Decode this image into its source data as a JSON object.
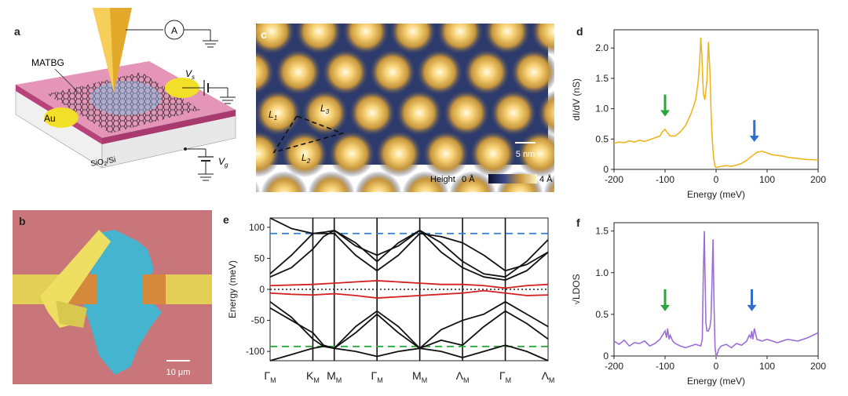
{
  "panels": {
    "a": {
      "label": "a",
      "sample_label": "MATBG",
      "ammeter_label": "A",
      "electrode_label": "Au",
      "substrate_label": "SiO",
      "substrate_sub": "2",
      "substrate_suffix": "/Si",
      "vs_label": "V",
      "vs_sub": "s",
      "vg_label": "V",
      "vg_sub": "g"
    },
    "b": {
      "label": "b",
      "scale_bar": "10 μm",
      "colors": {
        "bg": "#c8767a",
        "flake": "#44b4cf",
        "electrode": "#e3cf55"
      }
    },
    "c": {
      "label": "c",
      "l1": "L",
      "l1_sub": "1",
      "l2": "L",
      "l2_sub": "2",
      "l3": "L",
      "l3_sub": "3",
      "scale_bar": "5 nm",
      "colorbar_title": "Height",
      "colorbar_min": "0 Å",
      "colorbar_max": "4 Å"
    },
    "d": {
      "label": "d"
    },
    "e": {
      "label": "e"
    },
    "f": {
      "label": "f"
    }
  },
  "chart_data": [
    {
      "id": "d",
      "type": "line",
      "xlabel": "Energy (meV)",
      "ylabel": "dI/dV (nS)",
      "xlim": [
        -200,
        200
      ],
      "ylim": [
        0,
        2.3
      ],
      "xticks": [
        -200,
        -100,
        0,
        100,
        200
      ],
      "yticks": [
        0,
        0.5,
        1.0,
        1.5,
        2.0
      ],
      "color": "#f0b51e",
      "arrows": [
        {
          "x": -100,
          "y": 0.82,
          "color": "#2aa63a"
        },
        {
          "x": 75,
          "y": 0.4,
          "color": "#2f6fd0"
        }
      ],
      "series": [
        {
          "x": [
            -200,
            -190,
            -180,
            -170,
            -160,
            -150,
            -140,
            -130,
            -120,
            -110,
            -105,
            -100,
            -95,
            -90,
            -80,
            -70,
            -60,
            -50,
            -45,
            -40,
            -35,
            -32,
            -30,
            -28,
            -25,
            -22,
            -18,
            -15,
            -12,
            -10,
            -8,
            -5,
            -2,
            0,
            5,
            10,
            20,
            30,
            40,
            50,
            60,
            70,
            80,
            90,
            100,
            110,
            120,
            130,
            140,
            150,
            160,
            170,
            180,
            190,
            200
          ],
          "y": [
            0.43,
            0.45,
            0.44,
            0.47,
            0.45,
            0.48,
            0.46,
            0.49,
            0.52,
            0.55,
            0.62,
            0.66,
            0.6,
            0.55,
            0.55,
            0.62,
            0.72,
            0.9,
            1.02,
            1.15,
            1.45,
            1.8,
            2.17,
            1.9,
            1.25,
            1.15,
            1.45,
            2.1,
            1.6,
            1.0,
            0.55,
            0.2,
            0.05,
            0.03,
            0.04,
            0.05,
            0.06,
            0.05,
            0.07,
            0.1,
            0.15,
            0.22,
            0.28,
            0.3,
            0.27,
            0.24,
            0.23,
            0.22,
            0.2,
            0.19,
            0.18,
            0.17,
            0.16,
            0.16,
            0.15
          ]
        }
      ]
    },
    {
      "id": "f",
      "type": "line",
      "xlabel": "Energy (meV)",
      "ylabel": "√LDOS",
      "xlim": [
        -200,
        200
      ],
      "ylim": [
        0,
        1.6
      ],
      "xticks": [
        -200,
        -100,
        0,
        100,
        200
      ],
      "yticks": [
        0,
        0.5,
        1.0,
        1.5
      ],
      "color": "#9b6fd6",
      "arrows": [
        {
          "x": -100,
          "y": 0.5,
          "color": "#2aa63a"
        },
        {
          "x": 70,
          "y": 0.5,
          "color": "#2f6fd0"
        }
      ],
      "series": [
        {
          "x": [
            -200,
            -190,
            -180,
            -170,
            -160,
            -150,
            -140,
            -130,
            -120,
            -110,
            -105,
            -100,
            -97,
            -95,
            -92,
            -90,
            -85,
            -80,
            -70,
            -60,
            -50,
            -40,
            -30,
            -27,
            -25,
            -23,
            -22,
            -20,
            -18,
            -15,
            -12,
            -10,
            -8,
            -6,
            -4,
            -2,
            0,
            2,
            5,
            10,
            20,
            30,
            40,
            50,
            60,
            65,
            68,
            70,
            72,
            75,
            80,
            90,
            100,
            120,
            140,
            160,
            180,
            200
          ],
          "y": [
            0.18,
            0.14,
            0.19,
            0.12,
            0.16,
            0.15,
            0.18,
            0.12,
            0.15,
            0.2,
            0.25,
            0.3,
            0.22,
            0.33,
            0.2,
            0.25,
            0.18,
            0.15,
            0.12,
            0.1,
            0.12,
            0.14,
            0.12,
            0.2,
            1.0,
            1.5,
            1.1,
            0.4,
            0.3,
            0.3,
            0.35,
            0.45,
            0.9,
            1.4,
            0.6,
            0.1,
            0.0,
            0.02,
            0.08,
            0.12,
            0.14,
            0.1,
            0.15,
            0.13,
            0.18,
            0.25,
            0.22,
            0.3,
            0.2,
            0.33,
            0.2,
            0.18,
            0.2,
            0.16,
            0.2,
            0.18,
            0.22,
            0.28
          ]
        }
      ]
    },
    {
      "id": "e",
      "type": "line",
      "ylabel": "Energy (meV)",
      "ylim": [
        -115,
        115
      ],
      "yticks": [
        -100,
        -50,
        0,
        50,
        100
      ],
      "hlines": [
        {
          "y": 90,
          "color": "#2f7fd0",
          "style": "dashed"
        },
        {
          "y": -92,
          "color": "#2aa63a",
          "style": "dashed"
        },
        {
          "y": 0,
          "color": "#222222",
          "style": "dotted"
        }
      ],
      "kpoints": [
        {
          "name": "Γ",
          "sub": "M",
          "pos": 0
        },
        {
          "name": "K",
          "sub": "M",
          "pos": 1
        },
        {
          "name": "M",
          "sub": "M",
          "pos": 1.5
        },
        {
          "name": "Γ",
          "sub": "M",
          "pos": 2.5
        },
        {
          "name": "M",
          "sub": "M",
          "pos": 3.5
        },
        {
          "name": "Λ",
          "sub": "M",
          "pos": 4.5
        },
        {
          "name": "Γ",
          "sub": "M",
          "pos": 5.5
        },
        {
          "name": "Λ",
          "sub": "M",
          "pos": 6.5
        }
      ],
      "vlines_at": [
        1,
        1.5,
        2.5,
        3.5,
        4.5,
        5.5
      ],
      "series": [
        {
          "color": "#111111",
          "x": [
            0,
            0.5,
            1,
            1.25,
            1.5,
            2,
            2.5,
            3,
            3.5,
            4,
            4.5,
            5,
            5.5,
            6,
            6.5
          ],
          "y": [
            115,
            98,
            90,
            90,
            90,
            55,
            30,
            55,
            90,
            85,
            75,
            55,
            30,
            40,
            60
          ]
        },
        {
          "color": "#111111",
          "x": [
            0,
            0.5,
            1,
            1.25,
            1.5,
            2,
            2.5,
            3,
            3.5,
            4,
            4.5,
            5,
            5.5,
            6,
            6.5
          ],
          "y": [
            25,
            55,
            90,
            92,
            95,
            75,
            45,
            75,
            95,
            75,
            45,
            25,
            20,
            45,
            80
          ]
        },
        {
          "color": "#111111",
          "x": [
            0,
            0.5,
            1,
            1.25,
            1.5,
            2,
            2.5,
            3,
            3.5,
            4,
            4.5,
            5,
            5.5,
            6,
            6.5
          ],
          "y": [
            20,
            35,
            65,
            85,
            95,
            70,
            55,
            70,
            95,
            60,
            35,
            20,
            15,
            30,
            60
          ]
        },
        {
          "color": "#d42020",
          "x": [
            0,
            0.5,
            1,
            1.5,
            2,
            2.5,
            3,
            3.5,
            4,
            4.5,
            5,
            5.5,
            6,
            6.5
          ],
          "y": [
            6,
            7,
            8,
            10,
            12,
            14,
            12,
            10,
            8,
            8,
            6,
            2,
            6,
            8
          ]
        },
        {
          "color": "#d42020",
          "x": [
            0,
            0.5,
            1,
            1.5,
            2,
            2.5,
            3,
            3.5,
            4,
            4.5,
            5,
            5.5,
            6,
            6.5
          ],
          "y": [
            -6,
            -8,
            -9,
            -7,
            -10,
            -14,
            -12,
            -10,
            -8,
            -6,
            -2,
            -6,
            -10,
            -9
          ]
        },
        {
          "color": "#111111",
          "x": [
            0,
            0.5,
            1,
            1.25,
            1.5,
            2,
            2.5,
            3,
            3.5,
            4,
            4.5,
            5,
            5.5,
            6,
            6.5
          ],
          "y": [
            -30,
            -50,
            -70,
            -90,
            -95,
            -60,
            -35,
            -60,
            -95,
            -65,
            -50,
            -40,
            -20,
            -40,
            -60
          ]
        },
        {
          "color": "#111111",
          "x": [
            0,
            0.5,
            1,
            1.25,
            1.5,
            2,
            2.5,
            3,
            3.5,
            4,
            4.5,
            5,
            5.5,
            6,
            6.5
          ],
          "y": [
            -20,
            -45,
            -80,
            -92,
            -95,
            -70,
            -40,
            -70,
            -95,
            -82,
            -90,
            -60,
            -35,
            -55,
            -80
          ]
        },
        {
          "color": "#111111",
          "x": [
            0,
            0.5,
            1,
            1.25,
            1.5,
            2,
            2.5,
            3,
            3.5,
            4,
            4.5,
            5,
            5.5,
            6,
            6.5
          ],
          "y": [
            -115,
            -105,
            -95,
            -92,
            -95,
            -100,
            -108,
            -100,
            -95,
            -100,
            -110,
            -100,
            -90,
            -100,
            -115
          ]
        }
      ]
    }
  ]
}
